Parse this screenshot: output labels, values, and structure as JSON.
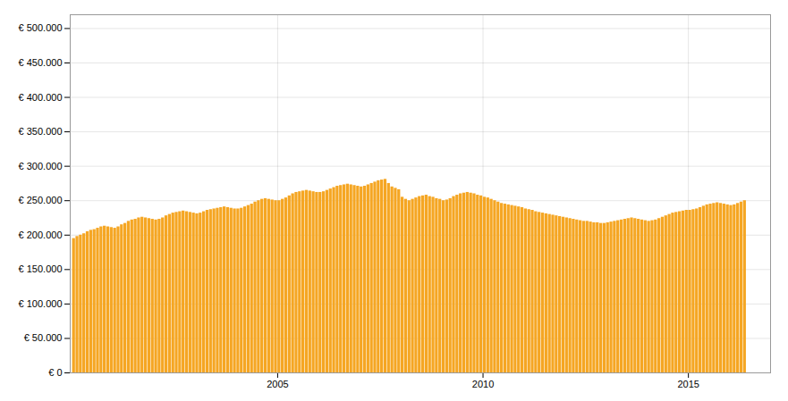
{
  "chart_data": {
    "type": "bar",
    "color": "#F5A623",
    "grid": true,
    "xlim": [
      1999.95,
      2017.0
    ],
    "xticks": [
      2005,
      2010,
      2015
    ],
    "ylim": [
      0,
      520000
    ],
    "yticks": [
      {
        "value": 0,
        "label": "€ 0"
      },
      {
        "value": 50000,
        "label": "€ 50.000"
      },
      {
        "value": 100000,
        "label": "€ 100.000"
      },
      {
        "value": 150000,
        "label": "€ 150.000"
      },
      {
        "value": 200000,
        "label": "€ 200.000"
      },
      {
        "value": 250000,
        "label": "€ 250.000"
      },
      {
        "value": 300000,
        "label": "€ 300.000"
      },
      {
        "value": 350000,
        "label": "€ 350.000"
      },
      {
        "value": 400000,
        "label": "€ 400.000"
      },
      {
        "value": 450000,
        "label": "€ 450.000"
      },
      {
        "value": 500000,
        "label": "€ 500.000"
      }
    ],
    "x": [
      2000.0416666666667,
      2000.125,
      2000.2083333333333,
      2000.2916666666667,
      2000.375,
      2000.4583333333333,
      2000.5416666666667,
      2000.625,
      2000.7083333333333,
      2000.7916666666667,
      2000.875,
      2000.9583333333333,
      2001.0416666666667,
      2001.125,
      2001.2083333333333,
      2001.2916666666667,
      2001.375,
      2001.4583333333333,
      2001.5416666666667,
      2001.625,
      2001.7083333333333,
      2001.7916666666667,
      2001.875,
      2001.9583333333333,
      2002.0416666666667,
      2002.125,
      2002.2083333333333,
      2002.2916666666667,
      2002.375,
      2002.4583333333333,
      2002.5416666666667,
      2002.625,
      2002.7083333333333,
      2002.7916666666667,
      2002.875,
      2002.9583333333333,
      2003.0416666666667,
      2003.125,
      2003.2083333333333,
      2003.2916666666667,
      2003.375,
      2003.4583333333333,
      2003.5416666666667,
      2003.625,
      2003.7083333333333,
      2003.7916666666667,
      2003.875,
      2003.9583333333333,
      2004.0416666666667,
      2004.125,
      2004.2083333333333,
      2004.2916666666667,
      2004.375,
      2004.4583333333333,
      2004.5416666666667,
      2004.625,
      2004.7083333333333,
      2004.7916666666667,
      2004.875,
      2004.9583333333333,
      2005.0416666666667,
      2005.125,
      2005.2083333333333,
      2005.2916666666667,
      2005.375,
      2005.4583333333333,
      2005.5416666666667,
      2005.625,
      2005.7083333333333,
      2005.7916666666667,
      2005.875,
      2005.9583333333333,
      2006.0416666666667,
      2006.125,
      2006.2083333333333,
      2006.2916666666667,
      2006.375,
      2006.4583333333333,
      2006.5416666666667,
      2006.625,
      2006.7083333333333,
      2006.7916666666667,
      2006.875,
      2006.9583333333333,
      2007.0416666666667,
      2007.125,
      2007.2083333333333,
      2007.2916666666667,
      2007.375,
      2007.4583333333333,
      2007.5416666666667,
      2007.625,
      2007.7083333333333,
      2007.7916666666667,
      2007.875,
      2007.9583333333333,
      2008.0416666666667,
      2008.125,
      2008.2083333333333,
      2008.2916666666667,
      2008.375,
      2008.4583333333333,
      2008.5416666666667,
      2008.625,
      2008.7083333333333,
      2008.7916666666667,
      2008.875,
      2008.9583333333333,
      2009.0416666666667,
      2009.125,
      2009.2083333333333,
      2009.2916666666667,
      2009.375,
      2009.4583333333333,
      2009.5416666666667,
      2009.625,
      2009.7083333333333,
      2009.7916666666667,
      2009.875,
      2009.9583333333333,
      2010.0416666666667,
      2010.125,
      2010.2083333333333,
      2010.2916666666667,
      2010.375,
      2010.4583333333333,
      2010.5416666666667,
      2010.625,
      2010.7083333333333,
      2010.7916666666667,
      2010.875,
      2010.9583333333333,
      2011.0416666666667,
      2011.125,
      2011.2083333333333,
      2011.2916666666667,
      2011.375,
      2011.4583333333333,
      2011.5416666666667,
      2011.625,
      2011.7083333333333,
      2011.7916666666667,
      2011.875,
      2011.9583333333333,
      2012.0416666666667,
      2012.125,
      2012.2083333333333,
      2012.2916666666667,
      2012.375,
      2012.4583333333333,
      2012.5416666666667,
      2012.625,
      2012.7083333333333,
      2012.7916666666667,
      2012.875,
      2012.9583333333333,
      2013.0416666666667,
      2013.125,
      2013.2083333333333,
      2013.2916666666667,
      2013.375,
      2013.4583333333333,
      2013.5416666666667,
      2013.625,
      2013.7083333333333,
      2013.7916666666667,
      2013.875,
      2013.9583333333333,
      2014.0416666666667,
      2014.125,
      2014.2083333333333,
      2014.2916666666667,
      2014.375,
      2014.4583333333333,
      2014.5416666666667,
      2014.625,
      2014.7083333333333,
      2014.7916666666667,
      2014.875,
      2014.9583333333333,
      2015.0416666666667,
      2015.125,
      2015.2083333333333,
      2015.2916666666667,
      2015.375,
      2015.4583333333333,
      2015.5416666666667,
      2015.625,
      2015.7083333333333,
      2015.7916666666667,
      2015.875,
      2015.9583333333333,
      2016.0416666666667,
      2016.125,
      2016.2083333333333,
      2016.2916666666667,
      2016.375,
      2016.4583333333333,
      2016.5416666666667,
      2016.625,
      2016.7083333333333
    ],
    "values": [
      195000,
      198000,
      200000,
      202000,
      205000,
      207000,
      208000,
      210000,
      212000,
      213000,
      212000,
      211000,
      210000,
      212000,
      215000,
      217000,
      220000,
      222000,
      223000,
      225000,
      226000,
      225000,
      224000,
      223000,
      222000,
      223000,
      225000,
      228000,
      230000,
      232000,
      233000,
      234000,
      235000,
      234000,
      233000,
      232000,
      231000,
      232000,
      234000,
      236000,
      237000,
      238000,
      239000,
      240000,
      241000,
      240000,
      239000,
      238000,
      238000,
      239000,
      241000,
      243000,
      245000,
      248000,
      250000,
      252000,
      253000,
      252000,
      251000,
      250000,
      250000,
      252000,
      254000,
      257000,
      260000,
      262000,
      263000,
      264000,
      265000,
      264000,
      263000,
      262000,
      262000,
      263000,
      265000,
      267000,
      269000,
      271000,
      272000,
      273000,
      274000,
      273000,
      272000,
      271000,
      270000,
      271000,
      273000,
      275000,
      277000,
      279000,
      280000,
      281000,
      275000,
      270000,
      268000,
      266000,
      255000,
      252000,
      250000,
      252000,
      254000,
      256000,
      257000,
      258000,
      256000,
      255000,
      253000,
      252000,
      250000,
      251000,
      253000,
      256000,
      258000,
      260000,
      261000,
      262000,
      261000,
      260000,
      258000,
      257000,
      255000,
      254000,
      252000,
      250000,
      248000,
      246000,
      245000,
      244000,
      243000,
      242000,
      241000,
      240000,
      238000,
      237000,
      236000,
      234000,
      233000,
      232000,
      231000,
      230000,
      229000,
      228000,
      227000,
      226000,
      225000,
      224000,
      223000,
      222000,
      221000,
      220000,
      220000,
      219000,
      218000,
      218000,
      217000,
      217000,
      218000,
      219000,
      220000,
      221000,
      222000,
      223000,
      224000,
      225000,
      224000,
      223000,
      222000,
      221000,
      220000,
      221000,
      222000,
      224000,
      226000,
      228000,
      230000,
      232000,
      233000,
      234000,
      235000,
      236000,
      236000,
      237000,
      238000,
      240000,
      242000,
      244000,
      245000,
      246000,
      247000,
      246000,
      245000,
      244000,
      243000,
      244000,
      246000,
      248000,
      250000,
      0,
      0,
      0,
      0
    ]
  }
}
